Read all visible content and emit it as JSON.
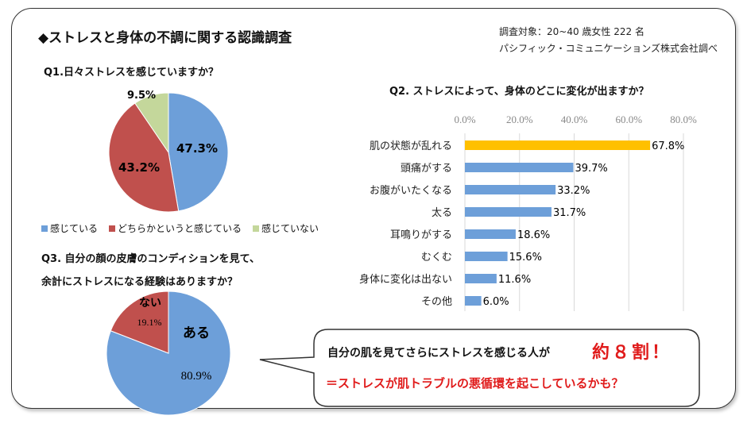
{
  "header": {
    "title": "◆ストレスと身体の不調に関する認識調査",
    "credit_line1": "調査対象：20~40 歳女性 222 名",
    "credit_line2": "パシフィック・コミュニケーションズ株式会社調べ"
  },
  "chart_data": [
    {
      "type": "pie",
      "title": "Q1.日々ストレスを感じていますか？",
      "categories": [
        "感じている",
        "どちらかというと感じている",
        "感じていない"
      ],
      "values": [
        47.3,
        43.2,
        9.5
      ],
      "labels": [
        "47.3%",
        "43.2%",
        "9.5%"
      ],
      "colors": [
        "#6d9fd9",
        "#c0504d",
        "#c4d79b"
      ],
      "legend": "bottom"
    },
    {
      "type": "bar",
      "orientation": "horizontal",
      "title": "Q2. ストレスによって、身体のどこに変化が出ますか？",
      "categories": [
        "肌の状態が乱れる",
        "頭痛がする",
        "お腹がいたくなる",
        "太る",
        "耳鳴りがする",
        "むくむ",
        "身体に変化は出ない",
        "その他"
      ],
      "values": [
        67.8,
        39.7,
        33.2,
        31.7,
        18.6,
        15.6,
        11.6,
        6.0
      ],
      "labels": [
        "67.8%",
        "39.7%",
        "33.2%",
        "31.7%",
        "18.6%",
        "15.6%",
        "11.6%",
        "6.0%"
      ],
      "xlim": [
        0,
        80
      ],
      "ticks": [
        "0.0%",
        "20.0%",
        "40.0%",
        "60.0%",
        "80.0%"
      ],
      "grid": true,
      "colors": {
        "highlight": "#ffc000",
        "default": "#6d9fd9"
      }
    },
    {
      "type": "pie",
      "title_line1": "Q3. 自分の顔の皮膚のコンディションを見て、",
      "title_line2": "余計にストレスになる経験はありますか？",
      "categories": [
        "ある",
        "ない"
      ],
      "values": [
        80.9,
        19.1
      ],
      "labels": [
        "80.9%",
        "19.1%"
      ],
      "colors": [
        "#6d9fd9",
        "#c0504d"
      ]
    }
  ],
  "callout": {
    "line1": "自分の肌を見てさらにストレスを感じる人が",
    "emphasis": "約８割！",
    "line2": "＝ストレスが肌トラブルの悪循環を起こしているかも？"
  }
}
